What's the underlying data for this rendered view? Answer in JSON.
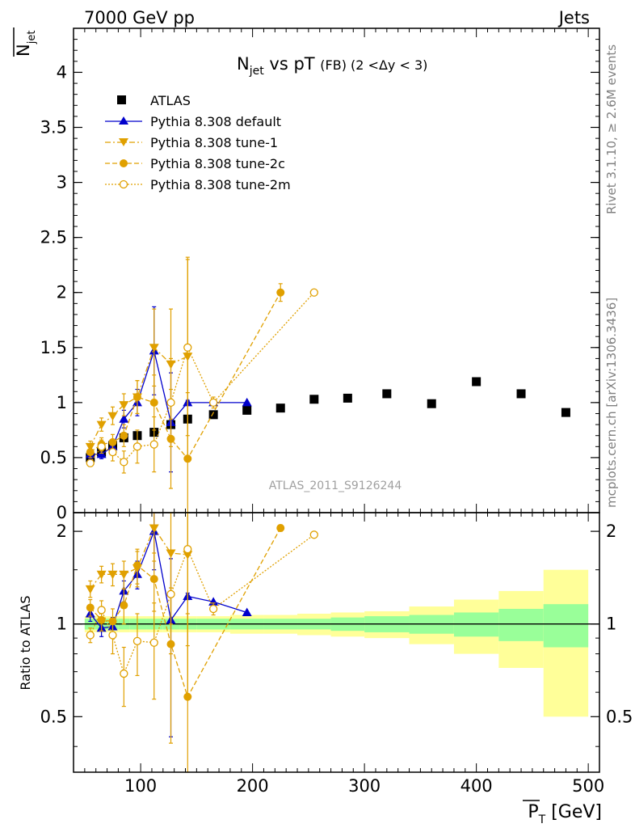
{
  "header": {
    "left": "7000 GeV pp",
    "right": "Jets"
  },
  "side_labels": {
    "rivet": "Rivet 3.1.10, ≥ 2.6M events",
    "mcplots": "mcplots.cern.ch [arXiv:1306.3436]"
  },
  "colors": {
    "atlas": "#000000",
    "default": "#0000cc",
    "tunes": "#e0a000",
    "band_inner": "#99ff99",
    "band_outer": "#ffff99"
  },
  "chart_data": [
    {
      "panel": "main",
      "type": "scatter",
      "title_main": "N",
      "title_sub": "jet",
      "title_rest": " vs pT ",
      "title_fb": "(FB)",
      "title_range": " (2 <Δy < 3)",
      "ylabel_main": "N",
      "ylabel_sub": "jet",
      "analysis_label": "ATLAS_2011_S9126244",
      "xlim": [
        40,
        510
      ],
      "ylim": [
        0,
        4.4
      ],
      "yticks": [
        0,
        0.5,
        1,
        1.5,
        2,
        2.5,
        3,
        3.5,
        4
      ],
      "yticklabels": [
        "0",
        "0.5",
        "1",
        "1.5",
        "2",
        "2.5",
        "3",
        "3.5",
        "4"
      ],
      "legend": {
        "placement": "top-left",
        "entries": [
          "ATLAS",
          "Pythia 8.308 default",
          "Pythia 8.308 tune-1",
          "Pythia 8.308 tune-2c",
          "Pythia 8.308 tune-2m"
        ]
      },
      "series": [
        {
          "name": "ATLAS",
          "style": "square",
          "x": [
            55,
            65,
            75,
            85,
            97,
            112,
            127,
            142,
            165,
            195,
            225,
            255,
            285,
            320,
            360,
            400,
            440,
            480
          ],
          "y": [
            0.5,
            0.55,
            0.61,
            0.68,
            0.7,
            0.73,
            0.8,
            0.85,
            0.89,
            0.93,
            0.95,
            1.03,
            1.04,
            1.08,
            0.99,
            1.19,
            1.08,
            0.91
          ],
          "yerr": [
            0.03,
            0.03,
            0.03,
            0.03,
            0.03,
            0.03,
            0.03,
            0.03,
            0.03,
            0.03,
            0.03,
            0.03,
            0.03,
            0.03,
            0.03,
            0.03,
            0.03,
            0.03
          ]
        },
        {
          "name": "Pythia 8.308 default",
          "style": "triangle-up",
          "x": [
            55,
            65,
            75,
            85,
            97,
            112,
            127,
            142,
            165,
            195
          ],
          "y": [
            0.53,
            0.53,
            0.6,
            0.85,
            1.0,
            1.47,
            0.82,
            1.0,
            1.0,
            1.0
          ],
          "yerr": [
            0.04,
            0.04,
            0.05,
            0.08,
            0.12,
            0.4,
            0.45,
            0.02,
            0.0,
            0.0
          ]
        },
        {
          "name": "Pythia 8.308 tune-1",
          "style": "triangle-down",
          "x": [
            55,
            65,
            75,
            85,
            97,
            112,
            127,
            142
          ],
          "y": [
            0.6,
            0.8,
            0.88,
            0.98,
            1.05,
            1.5,
            1.35,
            1.42
          ],
          "yerr": [
            0.05,
            0.06,
            0.08,
            0.1,
            0.15,
            0.35,
            0.5,
            0.9
          ]
        },
        {
          "name": "Pythia 8.308 tune-2c",
          "style": "circle",
          "x": [
            55,
            65,
            75,
            85,
            97,
            112,
            127,
            142,
            225
          ],
          "y": [
            0.55,
            0.62,
            0.64,
            0.7,
            1.05,
            1.0,
            0.67,
            0.49,
            2.0
          ],
          "yerr": [
            0.05,
            0.06,
            0.07,
            0.1,
            0.15,
            0.25,
            0.45,
            0.6,
            0.08
          ]
        },
        {
          "name": "Pythia 8.308 tune-2m",
          "style": "open-circle",
          "x": [
            55,
            65,
            75,
            85,
            97,
            112,
            127,
            142,
            165,
            255
          ],
          "y": [
            0.45,
            0.6,
            0.55,
            0.46,
            0.6,
            0.62,
            1.0,
            1.5,
            1.0,
            2.0
          ],
          "yerr": [
            0.03,
            0.06,
            0.08,
            0.1,
            0.15,
            0.25,
            0.4,
            0.8,
            0.05,
            0.0
          ]
        }
      ]
    },
    {
      "panel": "ratio",
      "type": "scatter",
      "ylabel": "Ratio to ATLAS",
      "xlabel_main": "P",
      "xlabel_sub": "T",
      "xlabel_unit": " [GeV]",
      "xlim": [
        40,
        510
      ],
      "ylim": [
        0.33,
        2.3
      ],
      "xticks": [
        100,
        200,
        300,
        400,
        500
      ],
      "xticklabels": [
        "100",
        "200",
        "300",
        "400",
        "500"
      ],
      "yticks": [
        0.5,
        1,
        2
      ],
      "yticklabels": [
        "0.5",
        "1",
        "2"
      ],
      "band_edges": [
        50,
        60,
        70,
        80,
        90,
        105,
        120,
        135,
        150,
        180,
        210,
        240,
        270,
        300,
        340,
        380,
        420,
        460,
        500
      ],
      "band_inner": [
        0.04,
        0.04,
        0.04,
        0.04,
        0.04,
        0.04,
        0.04,
        0.04,
        0.04,
        0.04,
        0.04,
        0.04,
        0.05,
        0.06,
        0.07,
        0.09,
        0.12,
        0.16,
        0.25
      ],
      "band_outer": [
        0.06,
        0.06,
        0.06,
        0.06,
        0.06,
        0.06,
        0.06,
        0.06,
        0.06,
        0.07,
        0.07,
        0.08,
        0.09,
        0.1,
        0.14,
        0.2,
        0.28,
        0.5
      ],
      "series": [
        {
          "name": "Pythia 8.308 default",
          "style": "triangle-up",
          "x": [
            55,
            65,
            75,
            85,
            97,
            112,
            127,
            142,
            165,
            195
          ],
          "y": [
            1.08,
            0.97,
            0.98,
            1.28,
            1.45,
            2.0,
            1.03,
            1.23,
            1.18,
            1.09
          ],
          "yerr": [
            0.06,
            0.06,
            0.07,
            0.1,
            0.15,
            0.5,
            0.6,
            0.03,
            0.0,
            0.0
          ]
        },
        {
          "name": "Pythia 8.308 tune-1",
          "style": "triangle-down",
          "x": [
            55,
            65,
            75,
            85,
            97,
            112,
            127,
            142
          ],
          "y": [
            1.3,
            1.45,
            1.45,
            1.45,
            1.52,
            2.05,
            1.7,
            1.68
          ],
          "yerr": [
            0.08,
            0.09,
            0.12,
            0.15,
            0.2,
            0.45,
            0.7,
            1.1
          ]
        },
        {
          "name": "Pythia 8.308 tune-2c",
          "style": "circle",
          "x": [
            55,
            65,
            75,
            85,
            97,
            112,
            127,
            142,
            225
          ],
          "y": [
            1.13,
            1.03,
            1.02,
            1.15,
            1.55,
            1.4,
            0.86,
            0.58,
            2.05
          ],
          "yerr": [
            0.07,
            0.08,
            0.1,
            0.15,
            0.2,
            0.3,
            0.45,
            0.5,
            0.05
          ]
        },
        {
          "name": "Pythia 8.308 tune-2m",
          "style": "open-circle",
          "x": [
            55,
            65,
            75,
            85,
            97,
            112,
            127,
            142,
            165,
            255
          ],
          "y": [
            0.92,
            1.11,
            0.92,
            0.69,
            0.88,
            0.87,
            1.25,
            1.75,
            1.12,
            1.95
          ],
          "yerr": [
            0.05,
            0.08,
            0.12,
            0.15,
            0.2,
            0.3,
            0.45,
            0.9,
            0.05,
            0.0
          ]
        }
      ]
    }
  ]
}
